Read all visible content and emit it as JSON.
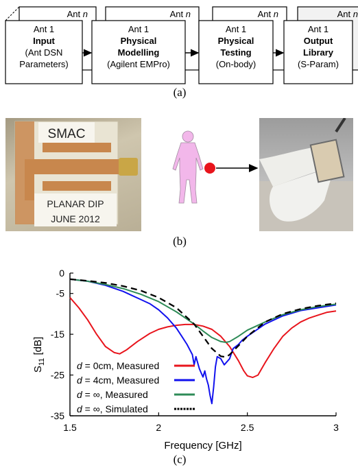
{
  "figure_a": {
    "caption": "(a)",
    "back_label": "Ant n",
    "stages": [
      {
        "front_label": "Ant 1",
        "title_lines": [
          "Input"
        ],
        "sub_lines": [
          "(Ant DSN",
          "Parameters)"
        ]
      },
      {
        "front_label": "Ant 1",
        "title_lines": [
          "Physical",
          "Modelling"
        ],
        "sub_lines": [
          "(Agilent EMPro)"
        ]
      },
      {
        "front_label": "Ant 1",
        "title_lines": [
          "Physical",
          "Testing"
        ],
        "sub_lines": [
          "(On-body)"
        ]
      },
      {
        "front_label": "Ant 1",
        "title_lines": [
          "Output",
          "Library"
        ],
        "sub_lines": [
          "(S-Param)"
        ]
      }
    ]
  },
  "figure_b": {
    "caption": "(b)",
    "photo_labels": [
      "SMAC",
      "PLANAR DIP",
      "JUNE 2012"
    ],
    "colors": {
      "body": "#f2b7ea",
      "marker": "#e8141c"
    }
  },
  "figure_c": {
    "caption": "(c)"
  },
  "chart_data": {
    "type": "line",
    "xlabel": "Frequency [GHz]",
    "ylabel": "S11 [dB]",
    "ylabel_parts": {
      "main": "S",
      "sub": "11",
      "rest": " [dB]"
    },
    "xlim": [
      1.5,
      3
    ],
    "ylim": [
      -35,
      0
    ],
    "xticks": [
      "1.5",
      "2",
      "2.5",
      "3"
    ],
    "yticks": [
      "0",
      "-5",
      "-15",
      "-25",
      "-35"
    ],
    "ytick_values": [
      0,
      -5,
      -15,
      -25,
      -35
    ],
    "xtick_values": [
      1.5,
      2,
      2.5,
      3
    ],
    "grid": false,
    "legend_position": "bottom-left",
    "series": [
      {
        "name": "d = 0cm, Measured",
        "legend_var": "d",
        "legend_rest": " = 0cm, Measured",
        "color": "#e8141c",
        "dash": "none",
        "x": [
          1.5,
          1.55,
          1.6,
          1.65,
          1.7,
          1.75,
          1.78,
          1.82,
          1.88,
          1.95,
          2.0,
          2.05,
          2.1,
          2.15,
          2.2,
          2.25,
          2.3,
          2.35,
          2.4,
          2.45,
          2.48,
          2.5,
          2.53,
          2.56,
          2.6,
          2.65,
          2.7,
          2.75,
          2.8,
          2.85,
          2.9,
          2.95,
          3.0
        ],
        "y": [
          -6,
          -8.5,
          -11.5,
          -15,
          -18,
          -19.5,
          -19.8,
          -18.8,
          -16.8,
          -14.8,
          -13.8,
          -13.2,
          -12.8,
          -12.6,
          -12.6,
          -13,
          -13.8,
          -15.5,
          -18,
          -21.5,
          -24,
          -25.2,
          -25.6,
          -25,
          -22,
          -18.5,
          -15.5,
          -13.5,
          -12,
          -11,
          -10.3,
          -9.6,
          -9.3
        ]
      },
      {
        "name": "d = 4cm, Measured",
        "legend_var": "d",
        "legend_rest": " = 4cm, Measured",
        "color": "#1111ee",
        "dash": "none",
        "x": [
          1.5,
          1.6,
          1.7,
          1.8,
          1.85,
          1.9,
          1.95,
          2.0,
          2.05,
          2.1,
          2.13,
          2.16,
          2.19,
          2.2,
          2.21,
          2.22,
          2.23,
          2.24,
          2.25,
          2.26,
          2.27,
          2.28,
          2.29,
          2.3,
          2.31,
          2.32,
          2.33,
          2.35,
          2.37,
          2.4,
          2.42,
          2.45,
          2.47,
          2.5,
          2.55,
          2.6,
          2.7,
          2.8,
          2.9,
          3.0
        ],
        "y": [
          -1.5,
          -2,
          -3,
          -4.5,
          -5.5,
          -6.5,
          -7.5,
          -9,
          -11,
          -13.5,
          -15.5,
          -17.5,
          -20,
          -22.5,
          -20.5,
          -22,
          -23.5,
          -24.5,
          -25.5,
          -24,
          -26,
          -27.5,
          -30,
          -32,
          -28,
          -23,
          -20.5,
          -21,
          -22.5,
          -21,
          -18.5,
          -17.5,
          -16.5,
          -15.5,
          -14,
          -12.5,
          -10.5,
          -9.2,
          -8.5,
          -7.8
        ]
      },
      {
        "name": "d = ∞, Measured",
        "legend_var": "d",
        "legend_rest": " = ∞, Measured",
        "color": "#2e8b57",
        "dash": "none",
        "x": [
          1.5,
          1.6,
          1.7,
          1.8,
          1.9,
          2.0,
          2.1,
          2.2,
          2.25,
          2.3,
          2.35,
          2.38,
          2.4,
          2.45,
          2.5,
          2.6,
          2.7,
          2.8,
          2.9,
          3.0
        ],
        "y": [
          -1.5,
          -2,
          -2.8,
          -3.8,
          -5.2,
          -7,
          -9.5,
          -12.5,
          -14.2,
          -15.8,
          -16.8,
          -17,
          -16.8,
          -15.5,
          -14,
          -12,
          -10.2,
          -9,
          -8.2,
          -7.6
        ]
      },
      {
        "name": "d = ∞, Simulated",
        "legend_var": "d",
        "legend_rest": " = ∞, Simulated",
        "color": "#000000",
        "dash": "9,6",
        "x": [
          1.5,
          1.6,
          1.7,
          1.8,
          1.9,
          2.0,
          2.1,
          2.2,
          2.25,
          2.3,
          2.35,
          2.38,
          2.4,
          2.45,
          2.5,
          2.6,
          2.7,
          2.8,
          2.9,
          3.0
        ],
        "y": [
          -1.5,
          -1.9,
          -2.4,
          -3.2,
          -4.3,
          -6,
          -8.5,
          -12.5,
          -15.5,
          -18.5,
          -20.4,
          -20.6,
          -20,
          -17.8,
          -15.5,
          -12,
          -10,
          -8.8,
          -8,
          -7.4
        ]
      }
    ]
  }
}
